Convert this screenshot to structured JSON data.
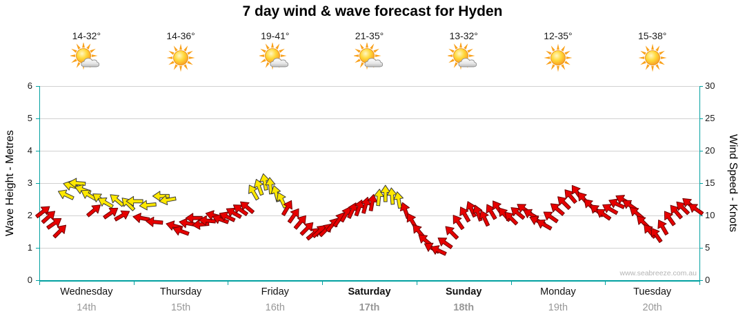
{
  "title": "7 day wind & wave forecast for Hyden",
  "watermark": "www.seabreeze.com.au",
  "axes": {
    "left_label": "Wave Height - Metres",
    "right_label": "Wind Speed - Knots",
    "left_ticks": [
      0,
      1,
      2,
      3,
      4,
      5,
      6
    ],
    "right_ticks": [
      0,
      5,
      10,
      15,
      20,
      25,
      30
    ]
  },
  "colors": {
    "axis_teal": "#00A0A0",
    "grid": "#D0D0D0",
    "arrow_red": "#E60000",
    "arrow_red_stroke": "#6E0000",
    "arrow_yellow": "#FFE800",
    "arrow_yellow_stroke": "#3A3A3A",
    "date_gray": "#979797",
    "watermark_gray": "#B4B4B4"
  },
  "days": [
    {
      "name": "Wednesday",
      "date": "14th",
      "temp": "14-32°",
      "icon": "sun-cloud",
      "bold": false
    },
    {
      "name": "Thursday",
      "date": "15th",
      "temp": "14-36°",
      "icon": "sun",
      "bold": false
    },
    {
      "name": "Friday",
      "date": "16th",
      "temp": "19-41°",
      "icon": "sun-cloud",
      "bold": false
    },
    {
      "name": "Saturday",
      "date": "17th",
      "temp": "21-35°",
      "icon": "sun-cloud",
      "bold": true
    },
    {
      "name": "Sunday",
      "date": "18th",
      "temp": "13-32°",
      "icon": "sun-cloud",
      "bold": true
    },
    {
      "name": "Monday",
      "date": "19th",
      "temp": "12-35°",
      "icon": "sun",
      "bold": false
    },
    {
      "name": "Tuesday",
      "date": "20th",
      "temp": "15-38°",
      "icon": "sun",
      "bold": false
    }
  ],
  "chart_data": {
    "type": "scatter",
    "marker": "wind-direction-arrow",
    "title": "7 day wind & wave forecast for Hyden",
    "categories": [
      "Wednesday 14th",
      "Thursday 15th",
      "Friday 16th",
      "Saturday 17th",
      "Sunday 18th",
      "Monday 19th",
      "Tuesday 20th"
    ],
    "x_range_days": [
      0,
      7
    ],
    "ylabel_left": "Wave Height - Metres",
    "ylim_left": [
      0,
      6
    ],
    "ylabel_right": "Wind Speed - Knots",
    "ylim_right": [
      0,
      30
    ],
    "grid": "horizontal",
    "legend": "none",
    "arrows_format": [
      "day_position_0to7",
      "wind_speed_knots",
      "color(r=red,y=yellow)",
      "rotation_deg"
    ],
    "arrows": [
      [
        0.04,
        10.6,
        "r",
        -38
      ],
      [
        0.1,
        9.8,
        "r",
        -42
      ],
      [
        0.16,
        8.8,
        "r",
        -35
      ],
      [
        0.22,
        7.6,
        "r",
        -45
      ],
      [
        0.28,
        13.2,
        "y",
        -155
      ],
      [
        0.34,
        14.6,
        "y",
        -165
      ],
      [
        0.4,
        15.0,
        "y",
        -175
      ],
      [
        0.46,
        14.0,
        "y",
        -160
      ],
      [
        0.52,
        13.2,
        "y",
        -150
      ],
      [
        0.58,
        10.8,
        "r",
        -40
      ],
      [
        0.64,
        12.6,
        "y",
        -145
      ],
      [
        0.7,
        12.0,
        "y",
        -150
      ],
      [
        0.76,
        10.4,
        "r",
        -35
      ],
      [
        0.82,
        12.4,
        "y",
        -140
      ],
      [
        0.88,
        10.0,
        "r",
        -30
      ],
      [
        0.94,
        11.8,
        "y",
        -135
      ],
      [
        1.01,
        12.2,
        "y",
        180
      ],
      [
        1.08,
        9.6,
        "r",
        -170
      ],
      [
        1.15,
        11.6,
        "y",
        175
      ],
      [
        1.22,
        9.0,
        "r",
        -175
      ],
      [
        1.29,
        13.0,
        "y",
        180
      ],
      [
        1.36,
        12.4,
        "y",
        170
      ],
      [
        1.43,
        8.4,
        "r",
        -165
      ],
      [
        1.5,
        7.6,
        "r",
        -160
      ],
      [
        1.57,
        8.8,
        "r",
        -170
      ],
      [
        1.64,
        9.6,
        "r",
        180
      ],
      [
        1.71,
        8.6,
        "r",
        175
      ],
      [
        1.78,
        9.2,
        "r",
        -175
      ],
      [
        1.85,
        10.0,
        "r",
        -165
      ],
      [
        1.92,
        9.4,
        "r",
        -160
      ],
      [
        1.99,
        9.8,
        "r",
        -155
      ],
      [
        2.06,
        10.4,
        "r",
        -150
      ],
      [
        2.13,
        10.9,
        "r",
        -145
      ],
      [
        2.2,
        11.3,
        "r",
        -140
      ],
      [
        2.27,
        13.6,
        "y",
        -120
      ],
      [
        2.33,
        14.4,
        "y",
        -110
      ],
      [
        2.39,
        15.2,
        "y",
        -100
      ],
      [
        2.45,
        14.6,
        "y",
        -95
      ],
      [
        2.51,
        13.4,
        "y",
        -105
      ],
      [
        2.57,
        12.4,
        "y",
        -115
      ],
      [
        2.63,
        11.2,
        "r",
        -60
      ],
      [
        2.7,
        10.0,
        "r",
        -55
      ],
      [
        2.77,
        9.0,
        "r",
        -50
      ],
      [
        2.84,
        8.0,
        "r",
        -45
      ],
      [
        2.91,
        7.2,
        "r",
        -40
      ],
      [
        2.97,
        7.6,
        "r",
        -42
      ],
      [
        3.04,
        7.8,
        "r",
        -45
      ],
      [
        3.11,
        8.6,
        "r",
        -50
      ],
      [
        3.18,
        9.4,
        "r",
        -55
      ],
      [
        3.25,
        10.2,
        "r",
        -60
      ],
      [
        3.32,
        10.8,
        "r",
        -65
      ],
      [
        3.39,
        11.2,
        "r",
        -70
      ],
      [
        3.46,
        11.6,
        "r",
        -75
      ],
      [
        3.53,
        12.0,
        "r",
        -80
      ],
      [
        3.6,
        12.8,
        "y",
        -85
      ],
      [
        3.67,
        13.4,
        "y",
        -90
      ],
      [
        3.74,
        13.0,
        "y",
        -95
      ],
      [
        3.81,
        12.4,
        "y",
        -100
      ],
      [
        3.88,
        10.8,
        "r",
        -110
      ],
      [
        3.95,
        9.2,
        "r",
        -120
      ],
      [
        4.02,
        7.6,
        "r",
        -130
      ],
      [
        4.09,
        6.2,
        "r",
        -140
      ],
      [
        4.16,
        5.0,
        "r",
        -150
      ],
      [
        4.23,
        4.6,
        "r",
        -155
      ],
      [
        4.3,
        5.8,
        "r",
        -145
      ],
      [
        4.37,
        7.4,
        "r",
        -135
      ],
      [
        4.44,
        9.0,
        "r",
        -125
      ],
      [
        4.51,
        10.2,
        "r",
        -120
      ],
      [
        4.58,
        11.0,
        "r",
        -115
      ],
      [
        4.65,
        10.4,
        "r",
        -110
      ],
      [
        4.72,
        9.6,
        "r",
        -115
      ],
      [
        4.79,
        10.6,
        "r",
        -120
      ],
      [
        4.86,
        11.2,
        "r",
        -125
      ],
      [
        4.93,
        10.2,
        "r",
        -130
      ],
      [
        5.0,
        9.6,
        "r",
        -135
      ],
      [
        5.07,
        10.4,
        "r",
        -140
      ],
      [
        5.14,
        11.0,
        "r",
        -145
      ],
      [
        5.21,
        10.2,
        "r",
        -150
      ],
      [
        5.28,
        9.2,
        "r",
        -155
      ],
      [
        5.35,
        8.6,
        "r",
        -150
      ],
      [
        5.42,
        9.8,
        "r",
        -145
      ],
      [
        5.49,
        11.0,
        "r",
        -140
      ],
      [
        5.56,
        12.0,
        "r",
        -135
      ],
      [
        5.63,
        13.0,
        "r",
        -130
      ],
      [
        5.7,
        13.6,
        "r",
        -125
      ],
      [
        5.77,
        12.6,
        "r",
        -130
      ],
      [
        5.84,
        11.6,
        "r",
        -135
      ],
      [
        5.91,
        10.8,
        "r",
        -140
      ],
      [
        5.98,
        10.2,
        "r",
        -145
      ],
      [
        6.05,
        11.0,
        "r",
        -150
      ],
      [
        6.12,
        11.8,
        "r",
        -155
      ],
      [
        6.19,
        12.4,
        "r",
        -150
      ],
      [
        6.26,
        11.6,
        "r",
        -145
      ],
      [
        6.33,
        10.4,
        "r",
        -140
      ],
      [
        6.4,
        9.0,
        "r",
        -135
      ],
      [
        6.47,
        7.6,
        "r",
        -130
      ],
      [
        6.54,
        7.0,
        "r",
        -125
      ],
      [
        6.61,
        8.2,
        "r",
        -120
      ],
      [
        6.68,
        9.6,
        "r",
        -125
      ],
      [
        6.75,
        10.6,
        "r",
        -130
      ],
      [
        6.82,
        11.2,
        "r",
        -135
      ],
      [
        6.89,
        11.8,
        "r",
        -140
      ],
      [
        6.96,
        11.0,
        "r",
        -145
      ]
    ]
  }
}
